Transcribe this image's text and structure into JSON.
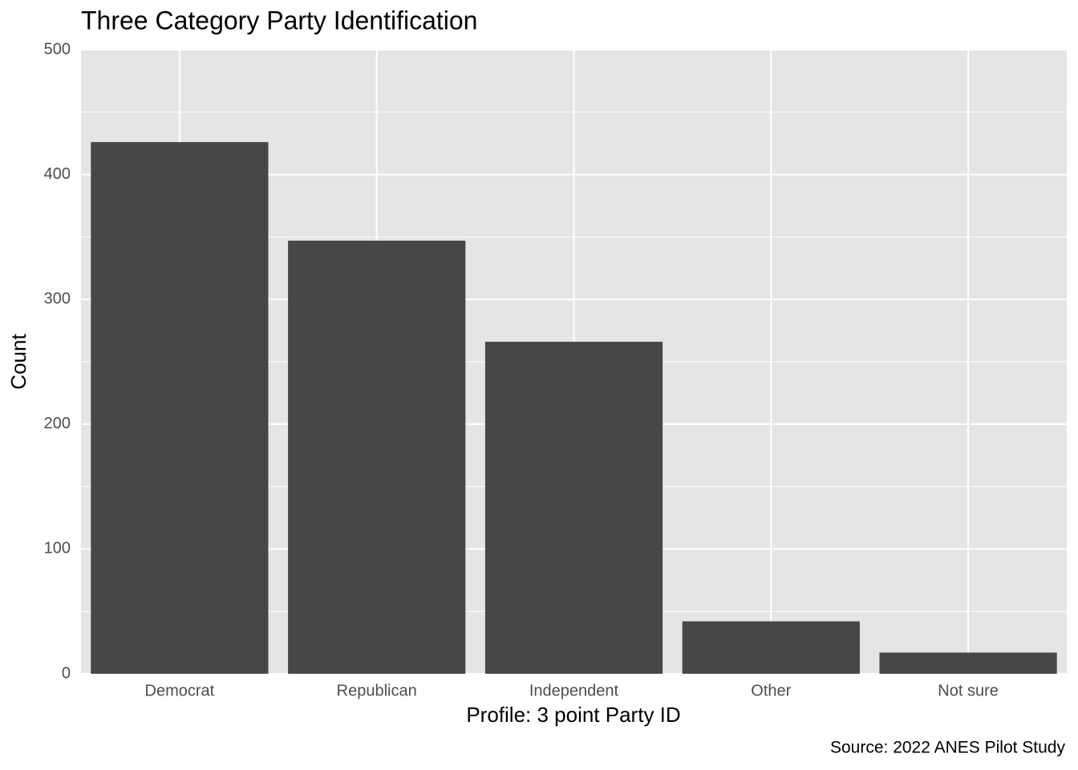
{
  "chart_data": {
    "type": "bar",
    "title": "Three Category Party Identification",
    "x_label": "Profile: 3 point Party ID",
    "y_label": "Count",
    "caption": "Source: 2022 ANES Pilot Study",
    "categories": [
      "Democrat",
      "Republican",
      "Independent",
      "Other",
      "Not sure"
    ],
    "values": [
      426,
      347,
      266,
      42,
      17
    ],
    "color": "#474747",
    "ylim": [
      0,
      500
    ],
    "yticks": [
      0,
      100,
      200,
      300,
      400,
      500
    ],
    "grid": true
  }
}
